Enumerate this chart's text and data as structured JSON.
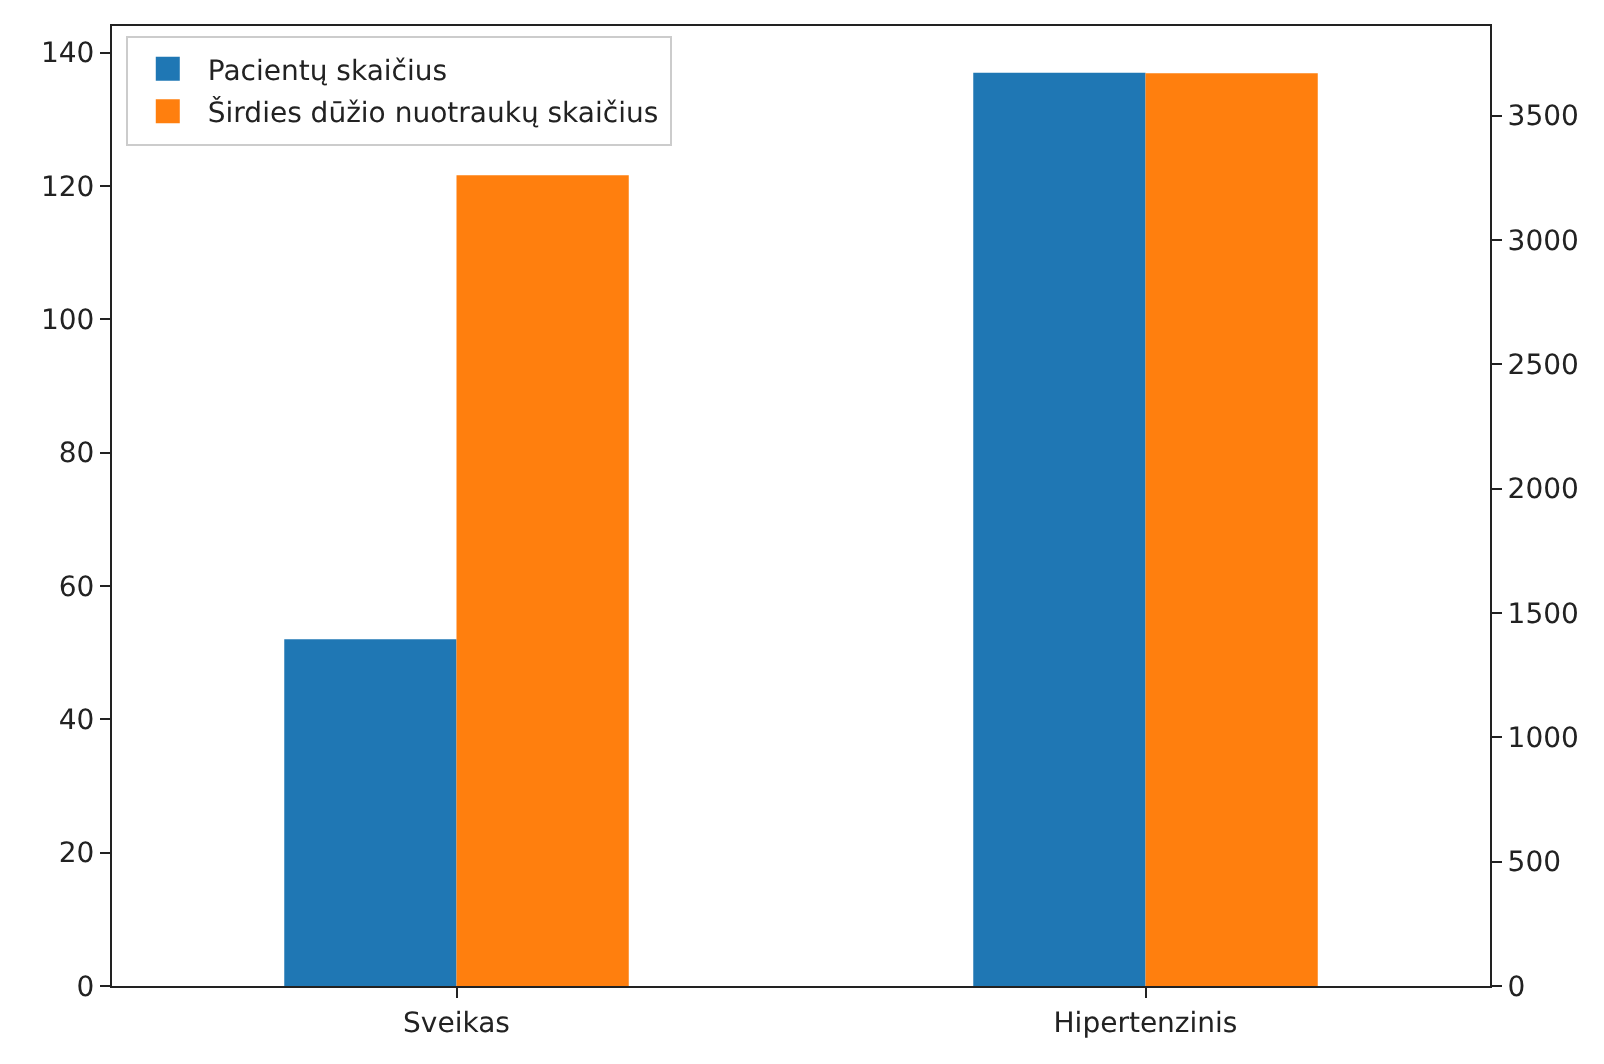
{
  "chart_data": {
    "type": "bar",
    "categories": [
      "Sveikas",
      "Hipertenzinis"
    ],
    "series": [
      {
        "name": "Pacientų skaičius",
        "color": "#1f77b4",
        "values": [
          52,
          137
        ]
      },
      {
        "name": "Širdies dūžio nuotraukų skaičius",
        "color": "#ff7f0e",
        "values": [
          3260,
          3670
        ],
        "axis": "y2"
      }
    ],
    "ylim": [
      0,
      144
    ],
    "yticks": [
      0,
      20,
      40,
      60,
      80,
      100,
      120,
      140
    ],
    "y2lim": [
      0,
      3860
    ],
    "y2ticks": [
      0,
      500,
      1000,
      1500,
      2000,
      2500,
      3000,
      3500
    ],
    "legend": "top left"
  }
}
